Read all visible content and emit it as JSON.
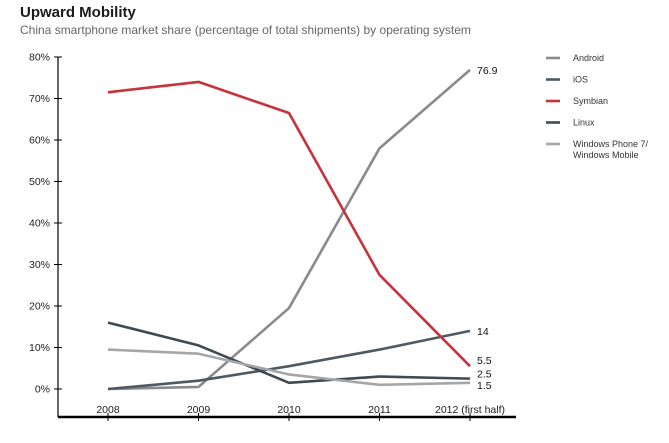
{
  "chart_data": {
    "type": "line",
    "title": "Upward Mobility",
    "subtitle": "China smartphone market share (percentage of total shipments) by operating system",
    "categories": [
      "2008",
      "2009",
      "2010",
      "2011",
      "2012 (first half)"
    ],
    "y_ticks": [
      "0%",
      "10%",
      "20%",
      "30%",
      "40%",
      "50%",
      "60%",
      "70%",
      "80%"
    ],
    "ylim": [
      0,
      80
    ],
    "grid": false,
    "legend_placement": "right",
    "series": [
      {
        "name": "Android",
        "color": "#8a8a8a",
        "values": [
          0,
          0.5,
          19.5,
          58,
          76.9
        ],
        "end_label": "76.9"
      },
      {
        "name": "iOS",
        "color": "#4e5a63",
        "values": [
          0,
          2,
          5.5,
          9.5,
          14
        ],
        "end_label": "14"
      },
      {
        "name": "Symbian",
        "color": "#c8323a",
        "values": [
          71.5,
          74,
          66.5,
          27.5,
          5.5
        ],
        "end_label": "5.5"
      },
      {
        "name": "Linux",
        "color": "#3f4a52",
        "values": [
          16,
          10.5,
          1.5,
          3,
          2.5
        ],
        "end_label": "2.5"
      },
      {
        "name": "Windows Phone 7/\nWindows Mobile",
        "color": "#a6a6a6",
        "values": [
          9.5,
          8.5,
          3.5,
          1,
          1.5
        ],
        "end_label": "1.5"
      }
    ]
  }
}
